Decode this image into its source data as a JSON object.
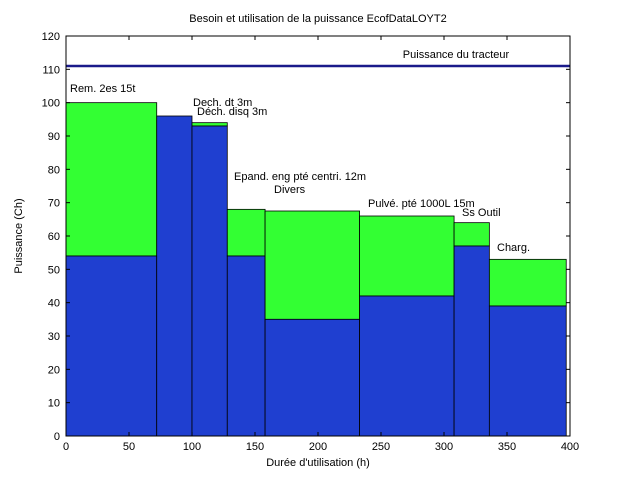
{
  "chart_data": {
    "type": "bar",
    "title": "Besoin et utilisation de la puissance EcofDataLOYT2",
    "xlabel": "Durée d'utilisation (h)",
    "ylabel": "Puissance (Ch)",
    "xlim": [
      0,
      400
    ],
    "ylim": [
      0,
      120
    ],
    "xticks": [
      0,
      50,
      100,
      150,
      200,
      250,
      300,
      350,
      400
    ],
    "yticks": [
      0,
      10,
      20,
      30,
      40,
      50,
      60,
      70,
      80,
      90,
      100,
      110,
      120
    ],
    "grid": false,
    "colors": {
      "utilisation": "#1f3fd0",
      "besoin": "#33ff33",
      "tracteur": "#1a1a8a"
    },
    "reference_line": {
      "label": "Puissance du tracteur",
      "y": 111
    },
    "bars": [
      {
        "label": "Rem. 2es 15t",
        "x_start": 0,
        "x_end": 72,
        "utilisation": 54,
        "besoin": 100
      },
      {
        "label": "Dech. dt 3m",
        "x_start": 72,
        "x_end": 100,
        "utilisation": 96,
        "besoin": 96
      },
      {
        "label": "Déch. disq 3m",
        "x_start": 100,
        "x_end": 128,
        "utilisation": 93,
        "besoin": 94
      },
      {
        "label": "Epand. eng pté centri. 12m",
        "x_start": 128,
        "x_end": 158,
        "utilisation": 54,
        "besoin": 68
      },
      {
        "label": "Divers",
        "x_start": 158,
        "x_end": 233,
        "utilisation": 35,
        "besoin": 67.5
      },
      {
        "label": "Pulvé. pté 1000L 15m",
        "x_start": 233,
        "x_end": 308,
        "utilisation": 42,
        "besoin": 66
      },
      {
        "label": "Ss Outil",
        "x_start": 308,
        "x_end": 336,
        "utilisation": 57,
        "besoin": 64
      },
      {
        "label": "Charg.",
        "x_start": 336,
        "x_end": 397,
        "utilisation": 39,
        "besoin": 53
      }
    ]
  }
}
